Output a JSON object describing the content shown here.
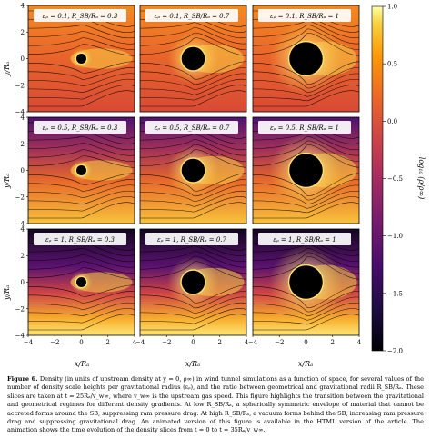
{
  "figure": {
    "y_axis_label": "y/Rₐ",
    "x_axis_label": "x/Rₐ",
    "y_ticks": [
      "4",
      "2",
      "0",
      "−2",
      "−4"
    ],
    "x_ticks": [
      "−4",
      "−2",
      "0",
      "2",
      "4"
    ],
    "colorbar_label": "log₁₀ (ρ/ρ∞)",
    "colorbar_ticks": [
      "1.0",
      "0.5",
      "0.0",
      "−0.5",
      "−1.0",
      "−1.5",
      "−2.0"
    ],
    "colorbar_range": [
      -2.0,
      1.0
    ],
    "colormap": "inferno",
    "panels": [
      {
        "label": "εᵨ = 0.1, R_SB/Rₐ = 0.3",
        "eps": 0.1,
        "ratio": 0.3
      },
      {
        "label": "εᵨ = 0.1, R_SB/Rₐ = 0.7",
        "eps": 0.1,
        "ratio": 0.7
      },
      {
        "label": "εᵨ = 0.1, R_SB/Rₐ = 1",
        "eps": 0.1,
        "ratio": 1
      },
      {
        "label": "εᵨ = 0.5, R_SB/Rₐ = 0.3",
        "eps": 0.5,
        "ratio": 0.3
      },
      {
        "label": "εᵨ = 0.5, R_SB/Rₐ = 0.7",
        "eps": 0.5,
        "ratio": 0.7
      },
      {
        "label": "εᵨ = 0.5, R_SB/Rₐ = 1",
        "eps": 0.5,
        "ratio": 1
      },
      {
        "label": "εᵨ = 1, R_SB/Rₐ = 0.3",
        "eps": 1,
        "ratio": 0.3
      },
      {
        "label": "εᵨ = 1, R_SB/Rₐ = 0.7",
        "eps": 1,
        "ratio": 0.7
      },
      {
        "label": "εᵨ = 1, R_SB/Rₐ = 1",
        "eps": 1,
        "ratio": 1
      }
    ]
  },
  "caption": {
    "title": "Figure 6.",
    "text": " Density (in units of upstream density at y = 0, ρ∞) in wind tunnel simulations as a function of space, for several values of the number of density scale heights per gravitational radius (εᵨ), and the ratio between geometrical and gravitational radii R_SB/Rₐ. These slices are taken at t = 25Rₐ/v_w∞, where v_w∞ is the upstream gas speed. This figure highlights the transition between the gravitational and geometrical regimes for different density gradients. At low R_SB/Rₐ, a spherically symmetric envelope of material that cannot be accreted forms around the SB, suppressing ram pressure drag. At high R_SB/Rₐ, a vacuum forms behind the SB, increasing ram pressure drag and suppressing gravitational drag. An animated version of this figure is available in the HTML version of the article. The animation shows the time evolution of the density slices from t = 0 to t = 35Rₐ/v_w∞."
  }
}
